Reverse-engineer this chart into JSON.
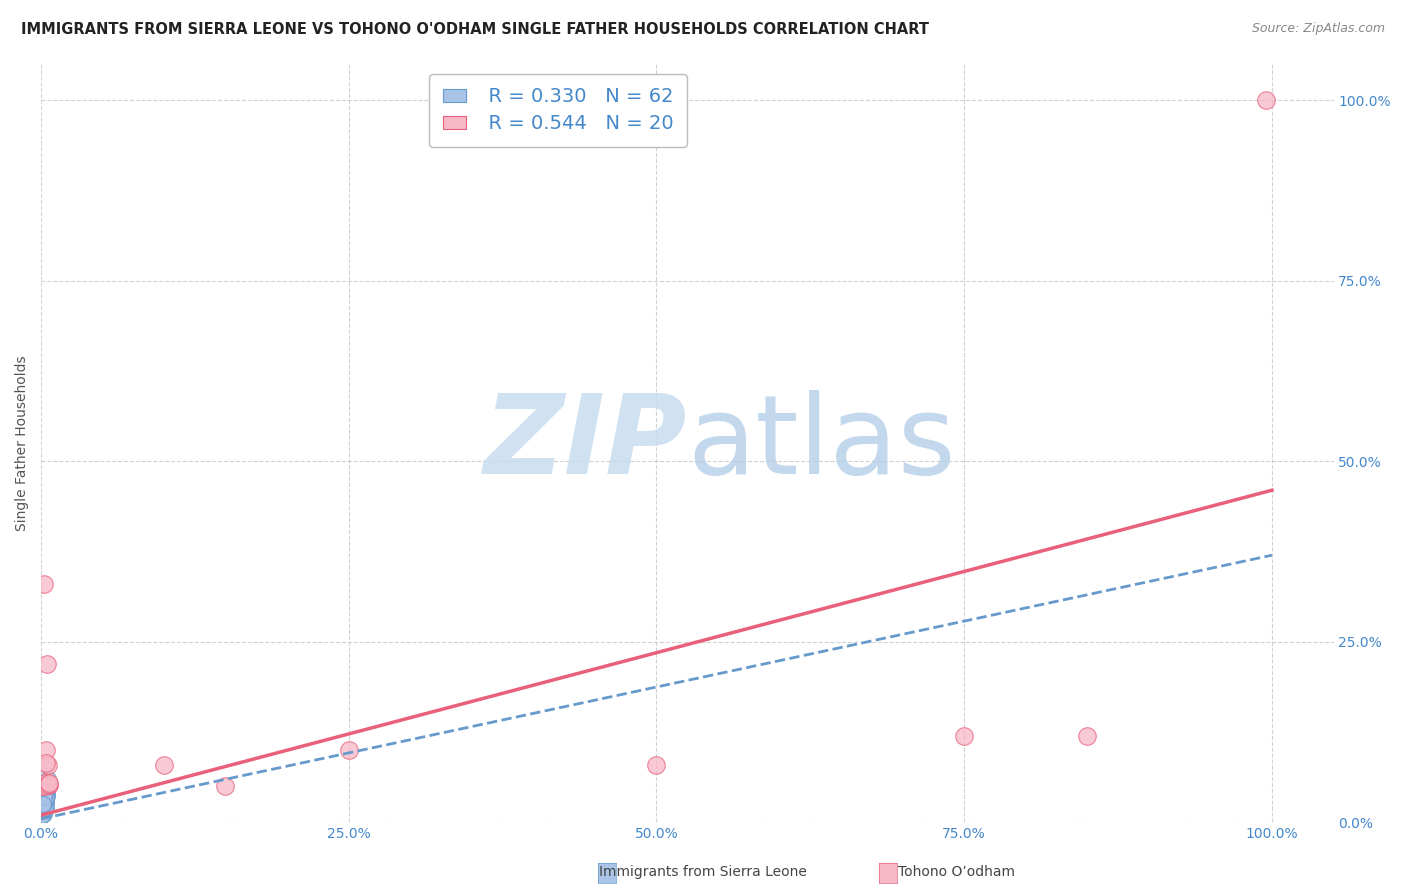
{
  "title": "IMMIGRANTS FROM SIERRA LEONE VS TOHONO O'ODHAM SINGLE FATHER HOUSEHOLDS CORRELATION CHART",
  "source": "Source: ZipAtlas.com",
  "ylabel": "Single Father Households",
  "watermark_zip": "ZIP",
  "watermark_atlas": "atlas",
  "legend": {
    "blue_label": "Immigrants from Sierra Leone",
    "pink_label": "Tohono O’odham",
    "blue_R": "R = 0.330",
    "blue_N": "N = 62",
    "pink_R": "R = 0.544",
    "pink_N": "N = 20"
  },
  "blue_color": "#aac4e8",
  "blue_edge_color": "#6699cc",
  "blue_line_color": "#6699cc",
  "pink_color": "#f7b8c8",
  "pink_edge_color": "#e8607a",
  "pink_line_color": "#e8607a",
  "axis_label_color": "#4488cc",
  "title_color": "#222222",
  "source_color": "#888888",
  "ylabel_color": "#555555",
  "grid_color": "#cccccc",
  "blue_scatter_x": [
    0.1,
    0.2,
    0.15,
    0.3,
    0.25,
    0.4,
    0.12,
    0.22,
    0.35,
    0.18,
    0.28,
    0.14,
    0.32,
    0.21,
    0.38,
    0.11,
    0.24,
    0.16,
    0.33,
    0.45,
    0.52,
    0.23,
    0.31,
    0.42,
    0.13,
    0.26,
    0.36,
    0.17,
    0.27,
    0.34,
    0.41,
    0.19,
    0.29,
    0.37,
    0.43,
    0.1,
    0.48,
    0.2,
    0.3,
    0.44,
    0.16,
    0.22,
    0.28,
    0.15,
    0.25,
    0.35,
    0.4,
    0.12,
    0.23,
    0.33,
    0.39,
    0.11,
    0.5,
    0.21,
    0.31,
    0.24,
    0.42,
    0.32,
    0.22,
    0.14,
    0.55,
    0.6
  ],
  "blue_scatter_y": [
    2.0,
    3.0,
    1.5,
    3.5,
    2.5,
    4.0,
    1.2,
    2.8,
    2.2,
    1.8,
    2.3,
    2.7,
    2.1,
    3.2,
    2.9,
    1.9,
    1.4,
    3.4,
    2.6,
    4.2,
    3.8,
    2.1,
    2.7,
    3.6,
    1.1,
    2.0,
    2.8,
    1.9,
    1.5,
    2.9,
    3.5,
    1.7,
    2.5,
    2.0,
    4.3,
    1.0,
    3.7,
    2.7,
    1.9,
    2.8,
    3.3,
    1.8,
    1.2,
    2.6,
    1.9,
    3.2,
    2.7,
    1.0,
    1.8,
    2.7,
    2.0,
    3.4,
    4.4,
    2.8,
    2.0,
    2.7,
    3.5,
    4.2,
    3.6,
    2.6,
    5.2,
    6.0
  ],
  "pink_scatter_x": [
    0.3,
    0.5,
    0.2,
    0.6,
    0.4,
    0.7,
    0.25,
    0.55,
    0.35,
    25.0,
    50.0,
    75.0,
    85.0,
    10.0,
    15.0,
    0.5,
    0.45,
    0.65,
    0.7,
    99.5
  ],
  "pink_scatter_y": [
    33.0,
    22.0,
    5.0,
    5.5,
    10.0,
    5.2,
    5.0,
    8.0,
    5.5,
    10.0,
    8.0,
    12.0,
    12.0,
    8.0,
    5.0,
    5.2,
    8.2,
    5.3,
    5.4,
    100.0
  ],
  "blue_trend_x": [
    0.0,
    100.0
  ],
  "blue_trend_y": [
    0.5,
    37.0
  ],
  "pink_trend_x": [
    0.0,
    100.0
  ],
  "pink_trend_y": [
    1.0,
    46.0
  ],
  "xlim": [
    0.0,
    105.0
  ],
  "ylim": [
    0.0,
    105.0
  ],
  "xtick_positions": [
    0.0,
    25.0,
    50.0,
    75.0,
    100.0
  ],
  "ytick_positions": [
    0.0,
    25.0,
    50.0,
    75.0,
    100.0
  ],
  "xtick_labels": [
    "0.0%",
    "25.0%",
    "50.0%",
    "75.0%",
    "100.0%"
  ],
  "ytick_labels": [
    "0.0%",
    "25.0%",
    "50.0%",
    "75.0%",
    "100.0%"
  ]
}
